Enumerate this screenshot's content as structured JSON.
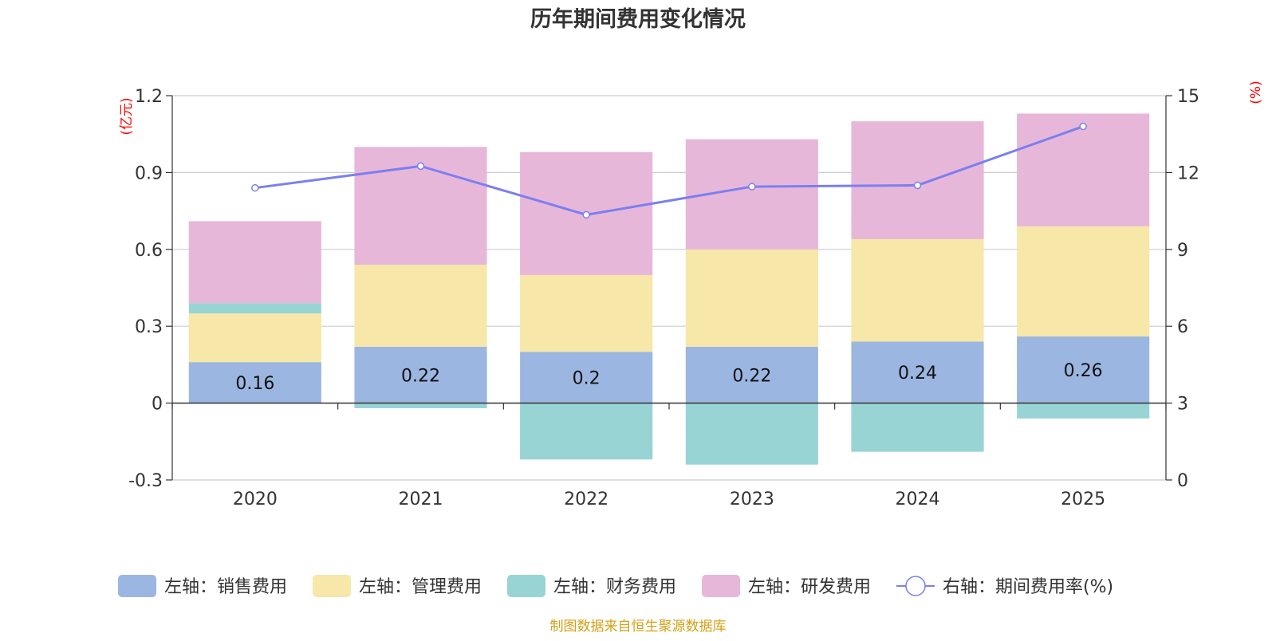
{
  "chart_data": {
    "type": "bar",
    "title": "历年期间费用变化情况",
    "categories": [
      "2020",
      "2021",
      "2022",
      "2023",
      "2024",
      "2025"
    ],
    "left_axis": {
      "unit_label": "(亿元)",
      "ylim": [
        -0.3,
        1.2
      ],
      "ticks": [
        -0.3,
        0,
        0.3,
        0.6,
        0.9,
        1.2
      ],
      "tick_labels": [
        "-0.3",
        "0",
        "0.3",
        "0.6",
        "0.9",
        "1.2"
      ]
    },
    "right_axis": {
      "unit_label": "(%)",
      "ylim": [
        0,
        15
      ],
      "ticks": [
        0,
        3,
        6,
        9,
        12,
        15
      ],
      "tick_labels": [
        "0",
        "3",
        "6",
        "9",
        "12",
        "15"
      ]
    },
    "series": [
      {
        "name": "左轴：销售费用",
        "axis": "left",
        "kind": "stacked-bar",
        "color": "#9bb6e0",
        "values": [
          0.16,
          0.22,
          0.2,
          0.22,
          0.24,
          0.26
        ],
        "labels": [
          "0.16",
          "0.22",
          "0.2",
          "0.22",
          "0.24",
          "0.26"
        ]
      },
      {
        "name": "左轴：管理费用",
        "axis": "left",
        "kind": "stacked-bar",
        "color": "#f7e7a8",
        "values": [
          0.19,
          0.32,
          0.3,
          0.38,
          0.4,
          0.43
        ]
      },
      {
        "name": "左轴：财务费用",
        "axis": "left",
        "kind": "stacked-bar",
        "color": "#98d4d4",
        "values": [
          0.04,
          -0.02,
          -0.22,
          -0.24,
          -0.19,
          -0.06
        ]
      },
      {
        "name": "左轴：研发费用",
        "axis": "left",
        "kind": "stacked-bar",
        "color": "#e7b7d9",
        "values": [
          0.32,
          0.46,
          0.48,
          0.43,
          0.46,
          0.44
        ]
      },
      {
        "name": "右轴：期间费用率(%)",
        "axis": "right",
        "kind": "line",
        "color": "#7b7ff0",
        "values": [
          11.4,
          12.25,
          10.35,
          11.45,
          11.5,
          13.8
        ]
      }
    ],
    "legend_position": "bottom",
    "source": "制图数据来自恒生聚源数据库"
  }
}
